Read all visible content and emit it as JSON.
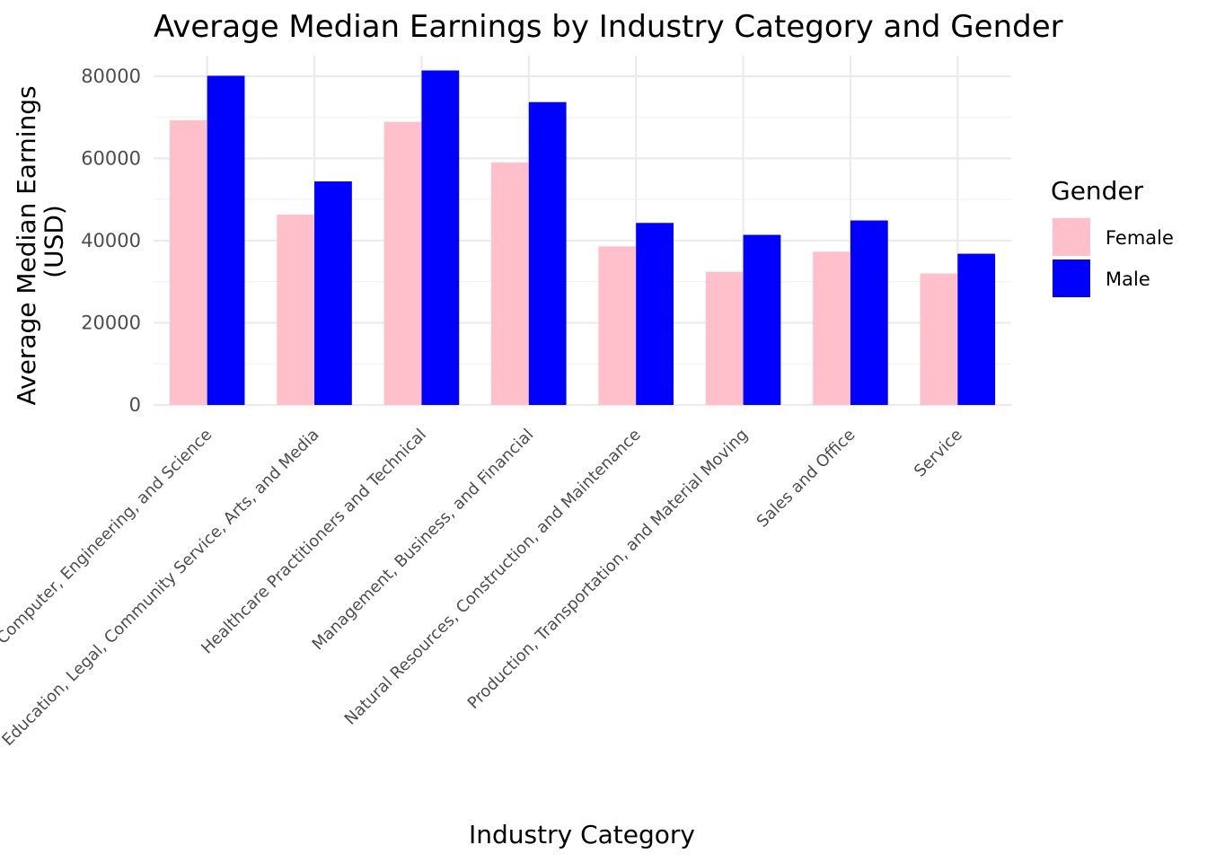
{
  "chart_data": {
    "type": "bar",
    "title": "Average Median Earnings by Industry Category and Gender",
    "xlabel": "Industry Category",
    "ylabel_lines": [
      "Average Median Earnings",
      "(USD)"
    ],
    "categories": [
      "Computer, Engineering, and Science",
      "Education, Legal, Community Service, Arts, and Media",
      "Healthcare Practitioners and Technical",
      "Management, Business, and Financial",
      "Natural Resources, Construction, and Maintenance",
      "Production, Transportation, and Material Moving",
      "Sales and Office",
      "Service"
    ],
    "series": [
      {
        "name": "Female",
        "color": "#ffc0cb",
        "values": [
          69300,
          46300,
          68900,
          59000,
          38600,
          32400,
          37300,
          32000
        ]
      },
      {
        "name": "Male",
        "color": "#0000ff",
        "values": [
          80100,
          54400,
          81400,
          73700,
          44300,
          41400,
          44900,
          36800
        ]
      }
    ],
    "ylim": [
      0,
      85000
    ],
    "yticks": [
      0,
      20000,
      40000,
      60000,
      80000
    ],
    "ytick_labels": [
      "0",
      "20000",
      "40000",
      "60000",
      "80000"
    ],
    "legend": {
      "title": "Gender",
      "position": "right",
      "labels": [
        "Female",
        "Male"
      ]
    },
    "grid": true
  }
}
